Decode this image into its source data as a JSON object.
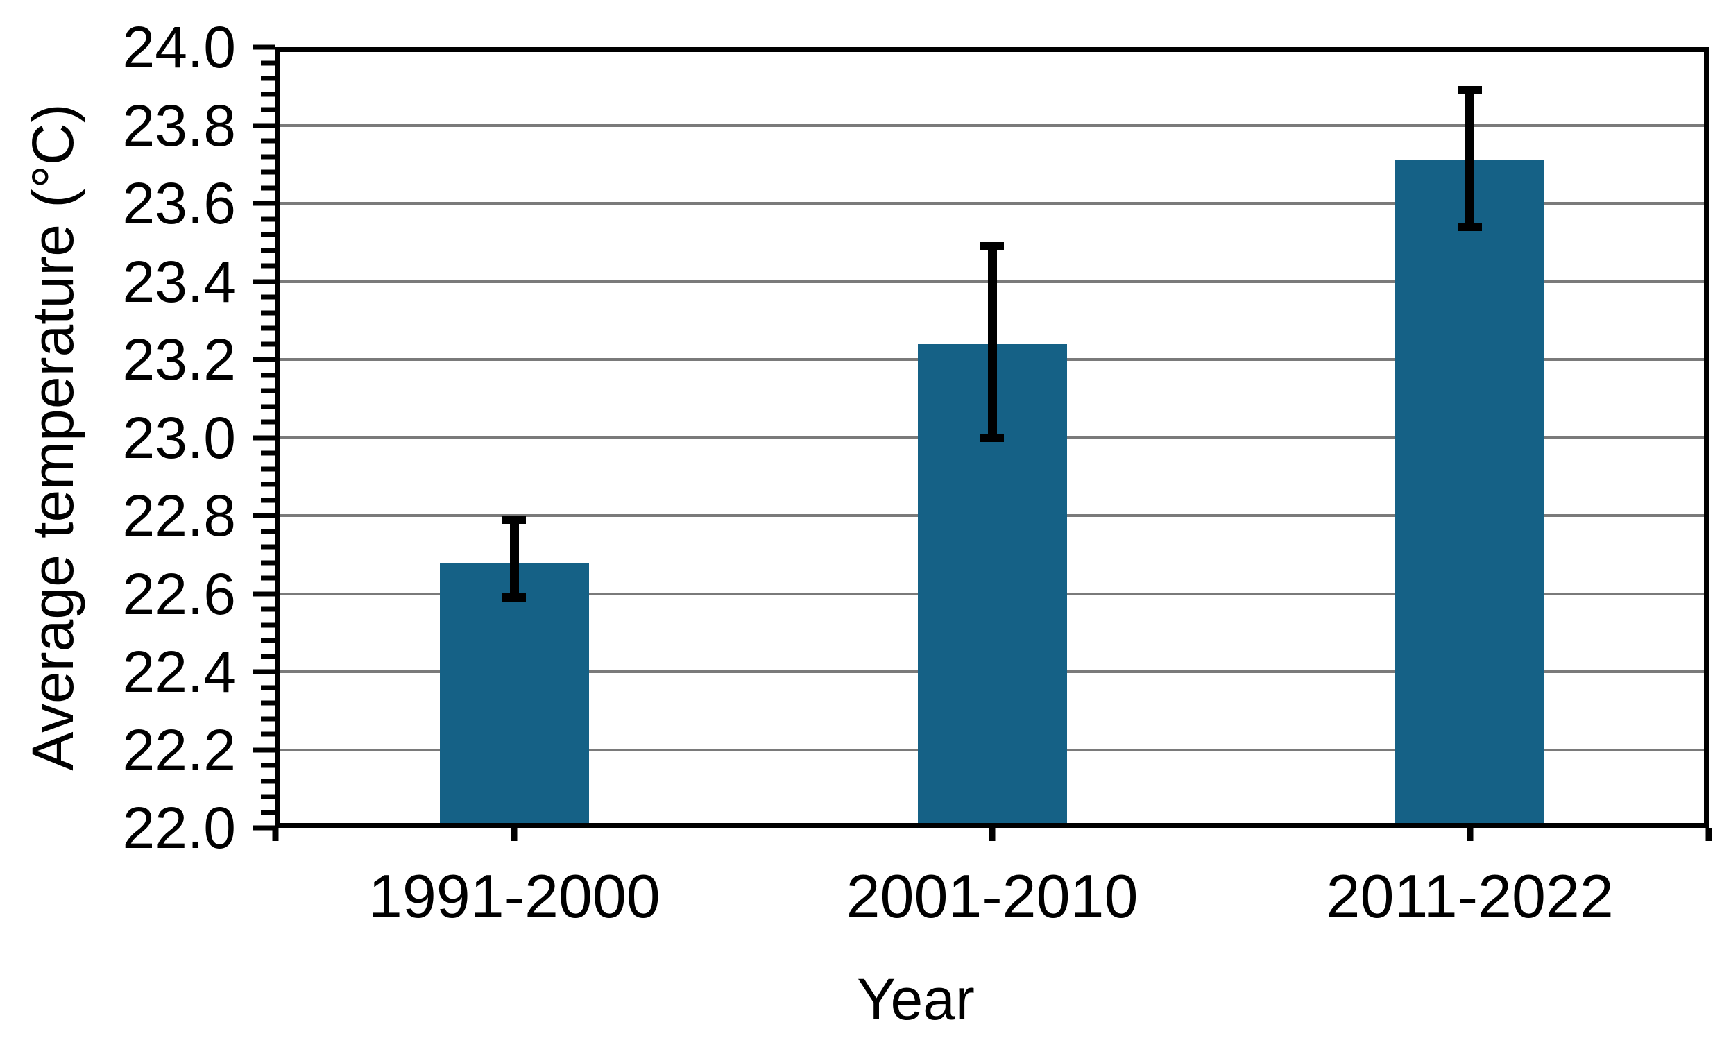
{
  "figure": {
    "background": "#ffffff"
  },
  "chart_data": {
    "type": "bar",
    "title": "",
    "categories": [
      "1991-2000",
      "2001-2010",
      "2011-2022"
    ],
    "values": [
      22.68,
      23.24,
      23.71
    ],
    "error_bars": {
      "upper": [
        22.79,
        23.49,
        23.89
      ],
      "lower": [
        22.59,
        23.0,
        23.54
      ]
    },
    "xlabel": "Year",
    "ylabel": "Average temperature (°C)",
    "ylim": [
      22.0,
      24.0
    ],
    "ytick_step": 0.2,
    "yminor_step": 0.04,
    "ytick_labels": [
      "24.0",
      "23.8",
      "23.6",
      "23.4",
      "23.2",
      "23.0",
      "22.8",
      "22.6",
      "22.4",
      "22.2",
      "22.0"
    ],
    "grid": "horizontal-major-only",
    "legend": "none",
    "colors": {
      "bar": "#156186",
      "gridline": "#7a7a7a",
      "axis": "#000000",
      "error_bar": "#000000",
      "text": "#000000"
    }
  }
}
